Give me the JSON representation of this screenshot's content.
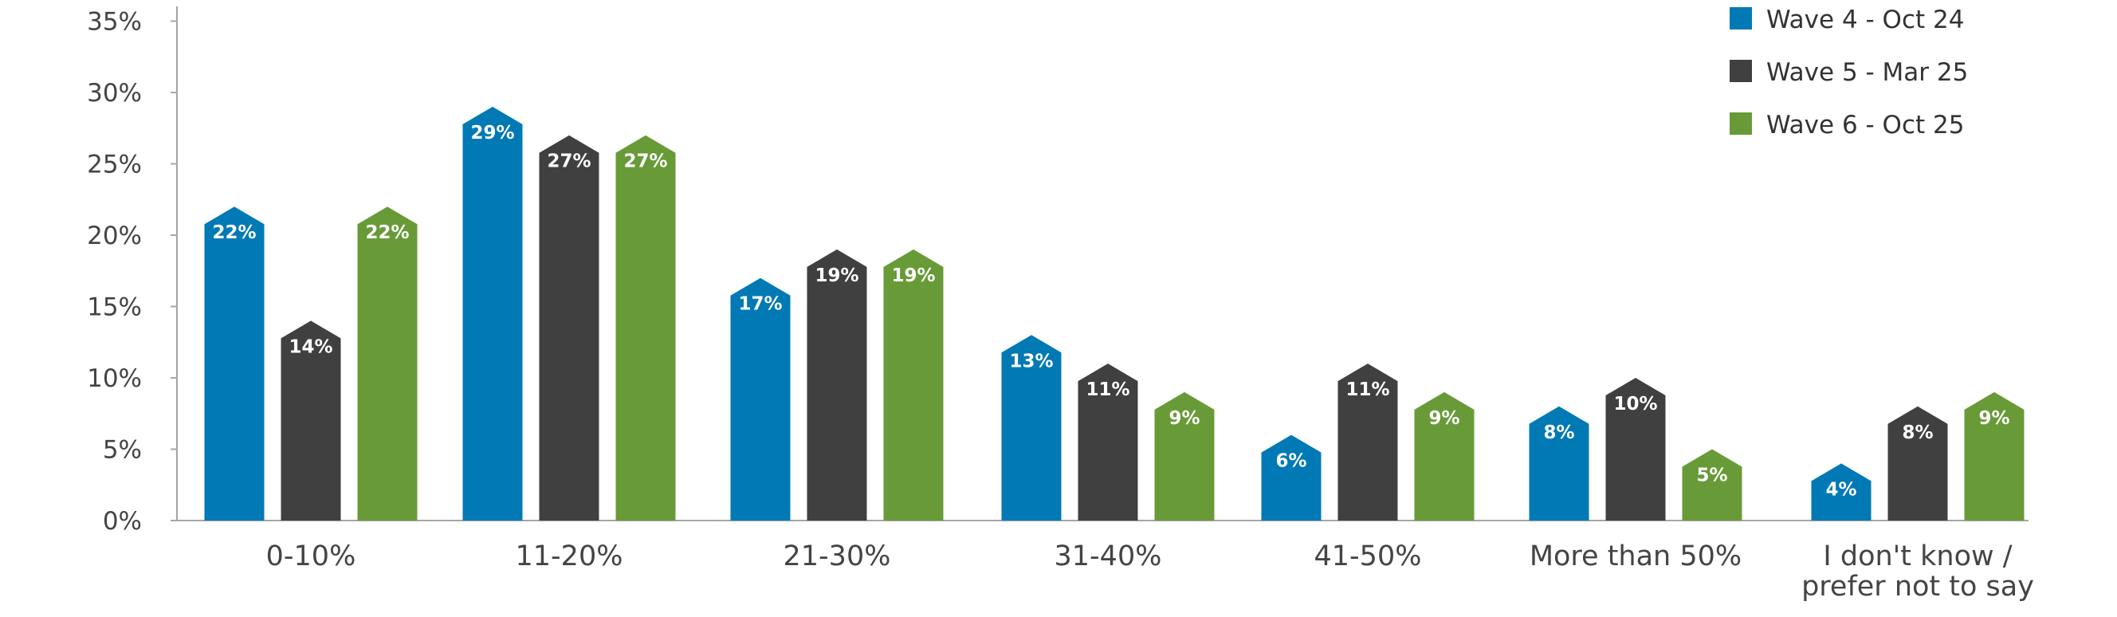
{
  "chart_data": {
    "type": "bar",
    "title": "",
    "xlabel": "",
    "ylabel": "",
    "ylim": [
      0,
      35
    ],
    "yticks": [
      "0%",
      "5%",
      "10%",
      "15%",
      "20%",
      "25%",
      "30%",
      "35%"
    ],
    "grid": false,
    "legend_position": "top-right",
    "categories": [
      [
        "0-10%"
      ],
      [
        "11-20%"
      ],
      [
        "21-30%"
      ],
      [
        "31-40%"
      ],
      [
        "41-50%"
      ],
      [
        "More than 50%"
      ],
      [
        "I don't know /",
        "prefer not to say"
      ]
    ],
    "series": [
      {
        "name": "Wave 4 - Oct 24",
        "color": "#0079b5",
        "values": [
          22,
          29,
          17,
          13,
          6,
          8,
          4
        ],
        "labels": [
          "22%",
          "29%",
          "17%",
          "13%",
          "6%",
          "8%",
          "4%"
        ]
      },
      {
        "name": "Wave 5 - Mar 25",
        "color": "#404040",
        "values": [
          14,
          27,
          19,
          11,
          11,
          10,
          8
        ],
        "labels": [
          "14%",
          "27%",
          "19%",
          "11%",
          "11%",
          "10%",
          "8%"
        ]
      },
      {
        "name": "Wave 6 - Oct 25",
        "color": "#689b38",
        "values": [
          22,
          27,
          19,
          9,
          9,
          5,
          9
        ],
        "labels": [
          "22%",
          "27%",
          "19%",
          "9%",
          "9%",
          "5%",
          "9%"
        ]
      }
    ]
  }
}
